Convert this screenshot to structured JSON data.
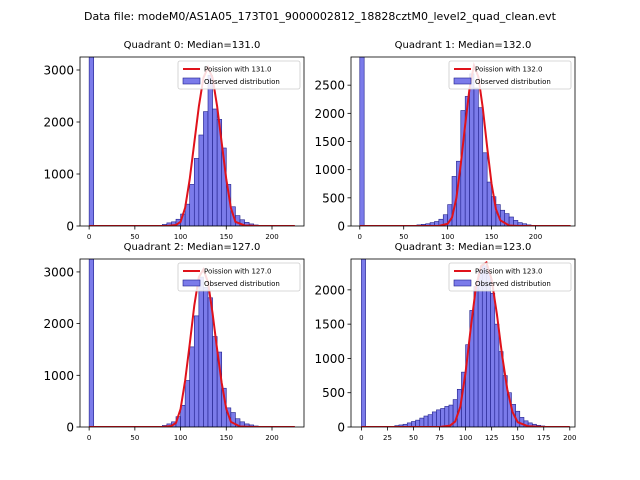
{
  "figure": {
    "suptitle": "Data file: modeM0/AS1A05_173T01_9000002812_18828cztM0_level2_quad_clean.evt"
  },
  "colors": {
    "bar_fill": "#7b7bea",
    "bar_edge": "#1f1f8a",
    "poisson_line": "#e0121b",
    "axis": "#000000"
  },
  "chart_data": [
    {
      "type": "bar",
      "title": "Quadrant 0: Median=131.0",
      "median": 131.0,
      "xlim": [
        -10,
        235
      ],
      "ylim": [
        0,
        3250
      ],
      "xticks": [
        0,
        50,
        100,
        150,
        200
      ],
      "yticks": [
        0,
        1000,
        2000,
        3000
      ],
      "bin_width": 5,
      "bins_x": [
        0,
        75,
        80,
        85,
        90,
        95,
        100,
        105,
        110,
        115,
        120,
        125,
        130,
        135,
        140,
        145,
        150,
        155,
        160,
        165,
        170,
        175,
        180,
        185
      ],
      "bins_y": [
        3250,
        10,
        30,
        60,
        80,
        130,
        230,
        420,
        800,
        1300,
        1750,
        2200,
        2900,
        2250,
        2050,
        1500,
        800,
        370,
        200,
        120,
        70,
        40,
        20,
        10
      ],
      "poisson_x": [
        0,
        85,
        95,
        100,
        105,
        110,
        115,
        120,
        125,
        130,
        135,
        140,
        145,
        150,
        155,
        160,
        170,
        185,
        225
      ],
      "poisson_y": [
        0,
        0,
        20,
        80,
        350,
        900,
        1600,
        2300,
        2850,
        3050,
        2850,
        2300,
        1600,
        900,
        350,
        80,
        10,
        0,
        0
      ],
      "legend": [
        "Poission with 131.0",
        "Observed distribution"
      ]
    },
    {
      "type": "bar",
      "title": "Quadrant 1: Median=132.0",
      "median": 132.0,
      "xlim": [
        -10,
        245
      ],
      "ylim": [
        0,
        3000
      ],
      "xticks": [
        0,
        50,
        100,
        150,
        200
      ],
      "yticks": [
        0,
        500,
        1000,
        1500,
        2000,
        2500
      ],
      "bin_width": 5,
      "bins_x": [
        0,
        60,
        65,
        70,
        75,
        80,
        85,
        90,
        95,
        100,
        105,
        110,
        115,
        120,
        125,
        130,
        135,
        140,
        145,
        150,
        155,
        160,
        165,
        170,
        175,
        180,
        185,
        190,
        195
      ],
      "bins_y": [
        3000,
        10,
        20,
        30,
        40,
        60,
        80,
        120,
        200,
        380,
        880,
        1150,
        2050,
        2300,
        2700,
        2450,
        2100,
        1300,
        780,
        520,
        380,
        280,
        220,
        160,
        100,
        60,
        40,
        20,
        10
      ],
      "poisson_x": [
        0,
        90,
        100,
        105,
        110,
        115,
        120,
        125,
        130,
        135,
        140,
        145,
        150,
        155,
        160,
        170,
        180,
        240
      ],
      "poisson_y": [
        0,
        0,
        40,
        150,
        500,
        1100,
        1800,
        2450,
        2850,
        2650,
        2100,
        1400,
        750,
        300,
        100,
        10,
        0,
        0
      ],
      "legend": [
        "Poission with 132.0",
        "Observed distribution"
      ]
    },
    {
      "type": "bar",
      "title": "Quadrant 2: Median=127.0",
      "median": 127.0,
      "xlim": [
        -10,
        235
      ],
      "ylim": [
        0,
        3250
      ],
      "xticks": [
        0,
        50,
        100,
        150,
        200
      ],
      "yticks": [
        0,
        1000,
        2000,
        3000
      ],
      "bin_width": 5,
      "bins_x": [
        0,
        75,
        80,
        85,
        90,
        95,
        100,
        105,
        110,
        115,
        120,
        125,
        130,
        135,
        140,
        145,
        150,
        155,
        160,
        165,
        170,
        175,
        180,
        185
      ],
      "bins_y": [
        3250,
        10,
        30,
        60,
        100,
        200,
        420,
        900,
        1550,
        2150,
        2900,
        2700,
        2500,
        1750,
        1450,
        750,
        370,
        280,
        160,
        100,
        60,
        40,
        20,
        10
      ],
      "poisson_x": [
        0,
        80,
        90,
        95,
        100,
        105,
        110,
        115,
        120,
        125,
        130,
        135,
        140,
        145,
        150,
        155,
        165,
        180,
        225
      ],
      "poisson_y": [
        0,
        0,
        20,
        80,
        350,
        900,
        1600,
        2350,
        2900,
        3050,
        2800,
        2200,
        1500,
        850,
        350,
        100,
        10,
        0,
        0
      ],
      "legend": [
        "Poission with 127.0",
        "Observed distribution"
      ]
    },
    {
      "type": "bar",
      "title": "Quadrant 3: Median=123.0",
      "median": 123.0,
      "xlim": [
        -10,
        205
      ],
      "ylim": [
        0,
        2450
      ],
      "xticks": [
        0,
        25,
        50,
        75,
        100,
        125,
        150,
        175,
        200
      ],
      "yticks": [
        0,
        500,
        1000,
        1500,
        2000
      ],
      "bin_width": 4,
      "bins_x": [
        0,
        28,
        32,
        36,
        40,
        44,
        48,
        52,
        56,
        60,
        64,
        68,
        72,
        76,
        80,
        84,
        88,
        92,
        96,
        100,
        104,
        108,
        112,
        116,
        120,
        124,
        128,
        132,
        136,
        140,
        144,
        148,
        152,
        156,
        160,
        164,
        168,
        172,
        176
      ],
      "bins_y": [
        2450,
        10,
        20,
        30,
        40,
        60,
        80,
        100,
        130,
        160,
        180,
        220,
        250,
        270,
        300,
        320,
        400,
        550,
        800,
        1200,
        1700,
        2050,
        2300,
        2350,
        2250,
        1950,
        1500,
        1100,
        750,
        500,
        330,
        230,
        140,
        90,
        60,
        40,
        25,
        15,
        10
      ],
      "poisson_x": [
        0,
        75,
        85,
        90,
        95,
        100,
        105,
        110,
        115,
        120,
        125,
        130,
        135,
        140,
        145,
        150,
        160,
        175,
        200
      ],
      "poisson_y": [
        0,
        0,
        20,
        80,
        300,
        800,
        1450,
        2050,
        2350,
        2400,
        2150,
        1650,
        1050,
        550,
        220,
        70,
        10,
        0,
        0
      ],
      "legend": [
        "Poission with 123.0",
        "Observed distribution"
      ]
    }
  ]
}
